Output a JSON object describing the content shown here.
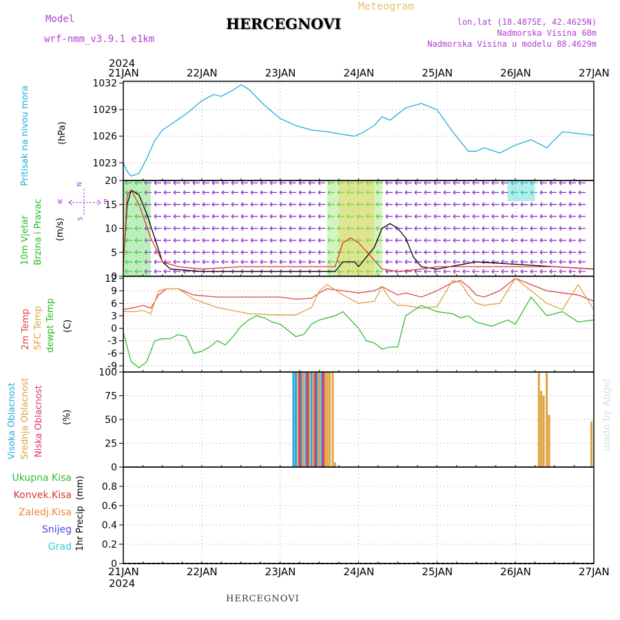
{
  "header": {
    "model_label": "Model",
    "model_name": "wrf-nmm_v3.9.1 e1km",
    "title": "HERCEGNOVI",
    "meteogram": "Meteogram",
    "lonlat": "lon,lat (18.4875E, 42.4625N)",
    "nadmorska": "Nadmorska Visina 60m",
    "nadmorska_model": "Nadmorska Visina u modelu 88.4629m",
    "year": "2024"
  },
  "footer": {
    "station": "HERCEGNOVI",
    "made_by": "made by Angel"
  },
  "x_dates": [
    "21JAN",
    "22JAN",
    "23JAN",
    "24JAN",
    "25JAN",
    "26JAN",
    "27JAN"
  ],
  "chart_data": [
    {
      "type": "line",
      "id": "pressure",
      "ylabel_name": "Pritisak na nivou mora",
      "ylabel_unit": "(hPa)",
      "ylim": [
        1021,
        1032.2
      ],
      "yticks": [
        1023,
        1026,
        1029,
        1032
      ],
      "grid": true,
      "series": [
        {
          "color": "#22aadd",
          "x": [
            0,
            0.05,
            0.1,
            0.2,
            0.3,
            0.4,
            0.5,
            0.6,
            0.8,
            1.0,
            1.15,
            1.25,
            1.4,
            1.5,
            1.6,
            1.8,
            2.0,
            2.2,
            2.4,
            2.6,
            2.8,
            2.95,
            3.05,
            3.2,
            3.3,
            3.4,
            3.6,
            3.8,
            4.0,
            4.2,
            4.4,
            4.5,
            4.6,
            4.8,
            5.0,
            5.2,
            5.4,
            5.6,
            5.8,
            6.0
          ],
          "y": [
            1023,
            1022,
            1021.5,
            1021.8,
            1023.5,
            1025.5,
            1026.7,
            1027.3,
            1028.5,
            1030,
            1030.7,
            1030.5,
            1031.2,
            1031.8,
            1031.3,
            1029.5,
            1028,
            1027.2,
            1026.7,
            1026.5,
            1026.2,
            1026,
            1026.4,
            1027.2,
            1028.2,
            1027.8,
            1029.2,
            1029.7,
            1029,
            1026.5,
            1024.3,
            1024.3,
            1024.7,
            1024.1,
            1025,
            1025.6,
            1024.7,
            1026.5,
            1026.3,
            1026.1
          ]
        }
      ]
    },
    {
      "type": "line",
      "id": "wind",
      "ylabel_name1": "10m Vjetar",
      "ylabel_name2": "Brzina i Pravac",
      "ylabel_unit": "(m/s)",
      "compass": {
        "n": "N",
        "w": "W",
        "e": "E",
        "s": "S"
      },
      "ylim": [
        0,
        20
      ],
      "yticks": [
        0,
        5,
        10,
        15,
        20
      ],
      "grid": true,
      "series": [
        {
          "color": "#000000",
          "x": [
            0,
            0.05,
            0.1,
            0.2,
            0.3,
            0.4,
            0.5,
            0.6,
            1.0,
            1.5,
            2.0,
            2.5,
            2.7,
            2.75,
            2.8,
            2.9,
            2.95,
            3.0,
            3.1,
            3.2,
            3.3,
            3.4,
            3.5,
            3.6,
            3.7,
            3.8,
            4.0,
            4.5,
            5.0,
            5.5,
            6.0
          ],
          "y": [
            3,
            15,
            18,
            17,
            13,
            8,
            3,
            1.5,
            1,
            1,
            1,
            1,
            1,
            2,
            3,
            3,
            3,
            2,
            4,
            6,
            10,
            11,
            10,
            8,
            4,
            2,
            1.5,
            3,
            2.5,
            2,
            1.5
          ]
        },
        {
          "color": "#dd3333",
          "x": [
            0,
            0.05,
            0.1,
            0.2,
            0.35,
            0.5,
            0.7,
            1.0,
            1.5,
            2.0,
            2.5,
            2.7,
            2.8,
            2.9,
            3.0,
            3.3,
            3.5,
            3.8,
            4.0,
            4.5,
            5.0,
            5.5,
            6.0
          ],
          "y": [
            2,
            17,
            18,
            15,
            8,
            3,
            2,
            1.5,
            2,
            2,
            2,
            2,
            7,
            8,
            7,
            1.5,
            1,
            1.5,
            2,
            2,
            2,
            2,
            1.5
          ]
        }
      ]
    },
    {
      "type": "line",
      "id": "temperature",
      "ylabel_name1": "2m Temp",
      "ylabel_name2": "SFC Temp",
      "ylabel_name3": "dewpt Temp",
      "ylabel_unit": "(C)",
      "ylim": [
        -10.5,
        12.5
      ],
      "yticks": [
        -9,
        -6,
        -3,
        0,
        3,
        6,
        9,
        12
      ],
      "grid": true,
      "series": [
        {
          "name": "2m Temp",
          "color": "#dd4444",
          "x": [
            0,
            0.15,
            0.25,
            0.35,
            0.45,
            0.55,
            0.7,
            0.9,
            1.2,
            1.6,
            2.0,
            2.2,
            2.4,
            2.5,
            2.6,
            2.8,
            3.0,
            3.2,
            3.3,
            3.4,
            3.5,
            3.6,
            3.8,
            4.0,
            4.2,
            4.3,
            4.4,
            4.5,
            4.6,
            4.8,
            5.0,
            5.2,
            5.4,
            5.6,
            5.8,
            6.0
          ],
          "y": [
            4.5,
            5,
            5.5,
            4.8,
            8,
            9.5,
            9.5,
            8,
            7.5,
            7.5,
            7.5,
            7,
            7.2,
            8.5,
            9.5,
            9,
            8.5,
            9,
            10,
            9,
            8,
            8.5,
            7.5,
            9,
            11,
            11.5,
            10,
            8,
            7.5,
            9,
            12,
            10.5,
            9,
            8.5,
            8,
            6.5
          ]
        },
        {
          "name": "SFC Temp",
          "color": "#e0a040",
          "x": [
            0,
            0.15,
            0.25,
            0.35,
            0.45,
            0.55,
            0.7,
            0.9,
            1.2,
            1.6,
            2.0,
            2.2,
            2.4,
            2.5,
            2.6,
            2.8,
            3.0,
            3.2,
            3.3,
            3.4,
            3.5,
            3.6,
            3.8,
            4.0,
            4.2,
            4.3,
            4.4,
            4.5,
            4.6,
            4.8,
            5.0,
            5.2,
            5.4,
            5.6,
            5.8,
            6.0
          ],
          "y": [
            4,
            4,
            4.3,
            3.5,
            9,
            9.5,
            9.5,
            7,
            5,
            3.5,
            3.2,
            3.2,
            5,
            9,
            10.5,
            8,
            6,
            6.5,
            10,
            7,
            5.5,
            5.5,
            4.8,
            5.2,
            11.5,
            11,
            8,
            6,
            5.5,
            6,
            12,
            9,
            6,
            4.5,
            10.5,
            4.5
          ]
        },
        {
          "name": "dewpt Temp",
          "color": "#33bb33",
          "x": [
            0,
            0.1,
            0.2,
            0.3,
            0.4,
            0.5,
            0.6,
            0.7,
            0.8,
            0.9,
            1.0,
            1.1,
            1.2,
            1.3,
            1.4,
            1.5,
            1.6,
            1.7,
            1.8,
            1.9,
            2.0,
            2.1,
            2.2,
            2.3,
            2.4,
            2.5,
            2.6,
            2.7,
            2.8,
            2.9,
            3.0,
            3.1,
            3.2,
            3.3,
            3.4,
            3.5,
            3.6,
            3.8,
            4.0,
            4.2,
            4.3,
            4.4,
            4.5,
            4.7,
            4.9,
            5.0,
            5.2,
            5.4,
            5.6,
            5.8,
            6.0
          ],
          "y": [
            -1,
            -8,
            -9.5,
            -8,
            -3,
            -2.5,
            -2.5,
            -1.5,
            -2,
            -6,
            -5.5,
            -4.5,
            -3,
            -4,
            -2,
            0.5,
            2,
            3,
            2.5,
            1.5,
            1,
            -0.5,
            -2,
            -1.5,
            1,
            2,
            2.5,
            3,
            4,
            2,
            0,
            -3,
            -3.5,
            -5,
            -4.5,
            -4.5,
            3,
            5.5,
            4,
            3.5,
            2.5,
            3,
            1.5,
            0.5,
            2,
            1,
            7.5,
            3,
            4,
            1.5,
            2
          ]
        }
      ]
    },
    {
      "type": "bar",
      "id": "cloud",
      "ylabel_name1": "Visoka Oblacnost",
      "ylabel_name2": "Srednja Oblacnost",
      "ylabel_name3": "Niska Oblacnost",
      "ylabel_unit": "(%)",
      "ylim": [
        0,
        100
      ],
      "yticks": [
        0,
        25,
        50,
        75,
        100
      ],
      "grid": true,
      "series": [
        {
          "name": "Visoka Oblacnost",
          "color": "#22aadd",
          "x": [
            2.17,
            2.2,
            2.27,
            2.33,
            2.4,
            2.47,
            2.53
          ],
          "values": [
            100,
            100,
            100,
            100,
            100,
            100,
            100
          ]
        },
        {
          "name": "Srednja Oblacnost",
          "color": "#e0a040",
          "x": [
            2.23,
            2.3,
            2.37,
            2.43,
            2.5,
            2.57,
            2.6,
            2.63,
            2.67,
            2.7,
            5.3,
            5.33,
            5.36,
            5.4,
            5.43,
            5.97
          ],
          "values": [
            100,
            100,
            100,
            100,
            100,
            100,
            100,
            100,
            100,
            5,
            100,
            80,
            75,
            100,
            55,
            48
          ]
        },
        {
          "name": "Niska Oblacnost",
          "color": "#dd3377",
          "x": [
            2.25,
            2.35,
            2.45,
            2.55
          ],
          "values": [
            100,
            100,
            100,
            100
          ]
        }
      ]
    },
    {
      "type": "line",
      "id": "precip",
      "ylabel_name1": "1hr Precip",
      "ylabel_unit": "(mm)",
      "legend": [
        "Ukupna Kisa",
        "Konvek.Kisa",
        "Zaledj.Kisa",
        "Snijeg",
        "Grad"
      ],
      "legend_colors": [
        "#33bb33",
        "#dd3333",
        "#ee8833",
        "#4444dd",
        "#33cccc"
      ],
      "ylim": [
        0,
        1.0
      ],
      "yticks": [
        "0",
        "0.2",
        "0.4",
        "0.6",
        "0.8"
      ],
      "grid": true,
      "series": [
        {
          "color": "#000000",
          "x": [
            0,
            6
          ],
          "y": [
            0,
            0
          ]
        }
      ]
    }
  ]
}
